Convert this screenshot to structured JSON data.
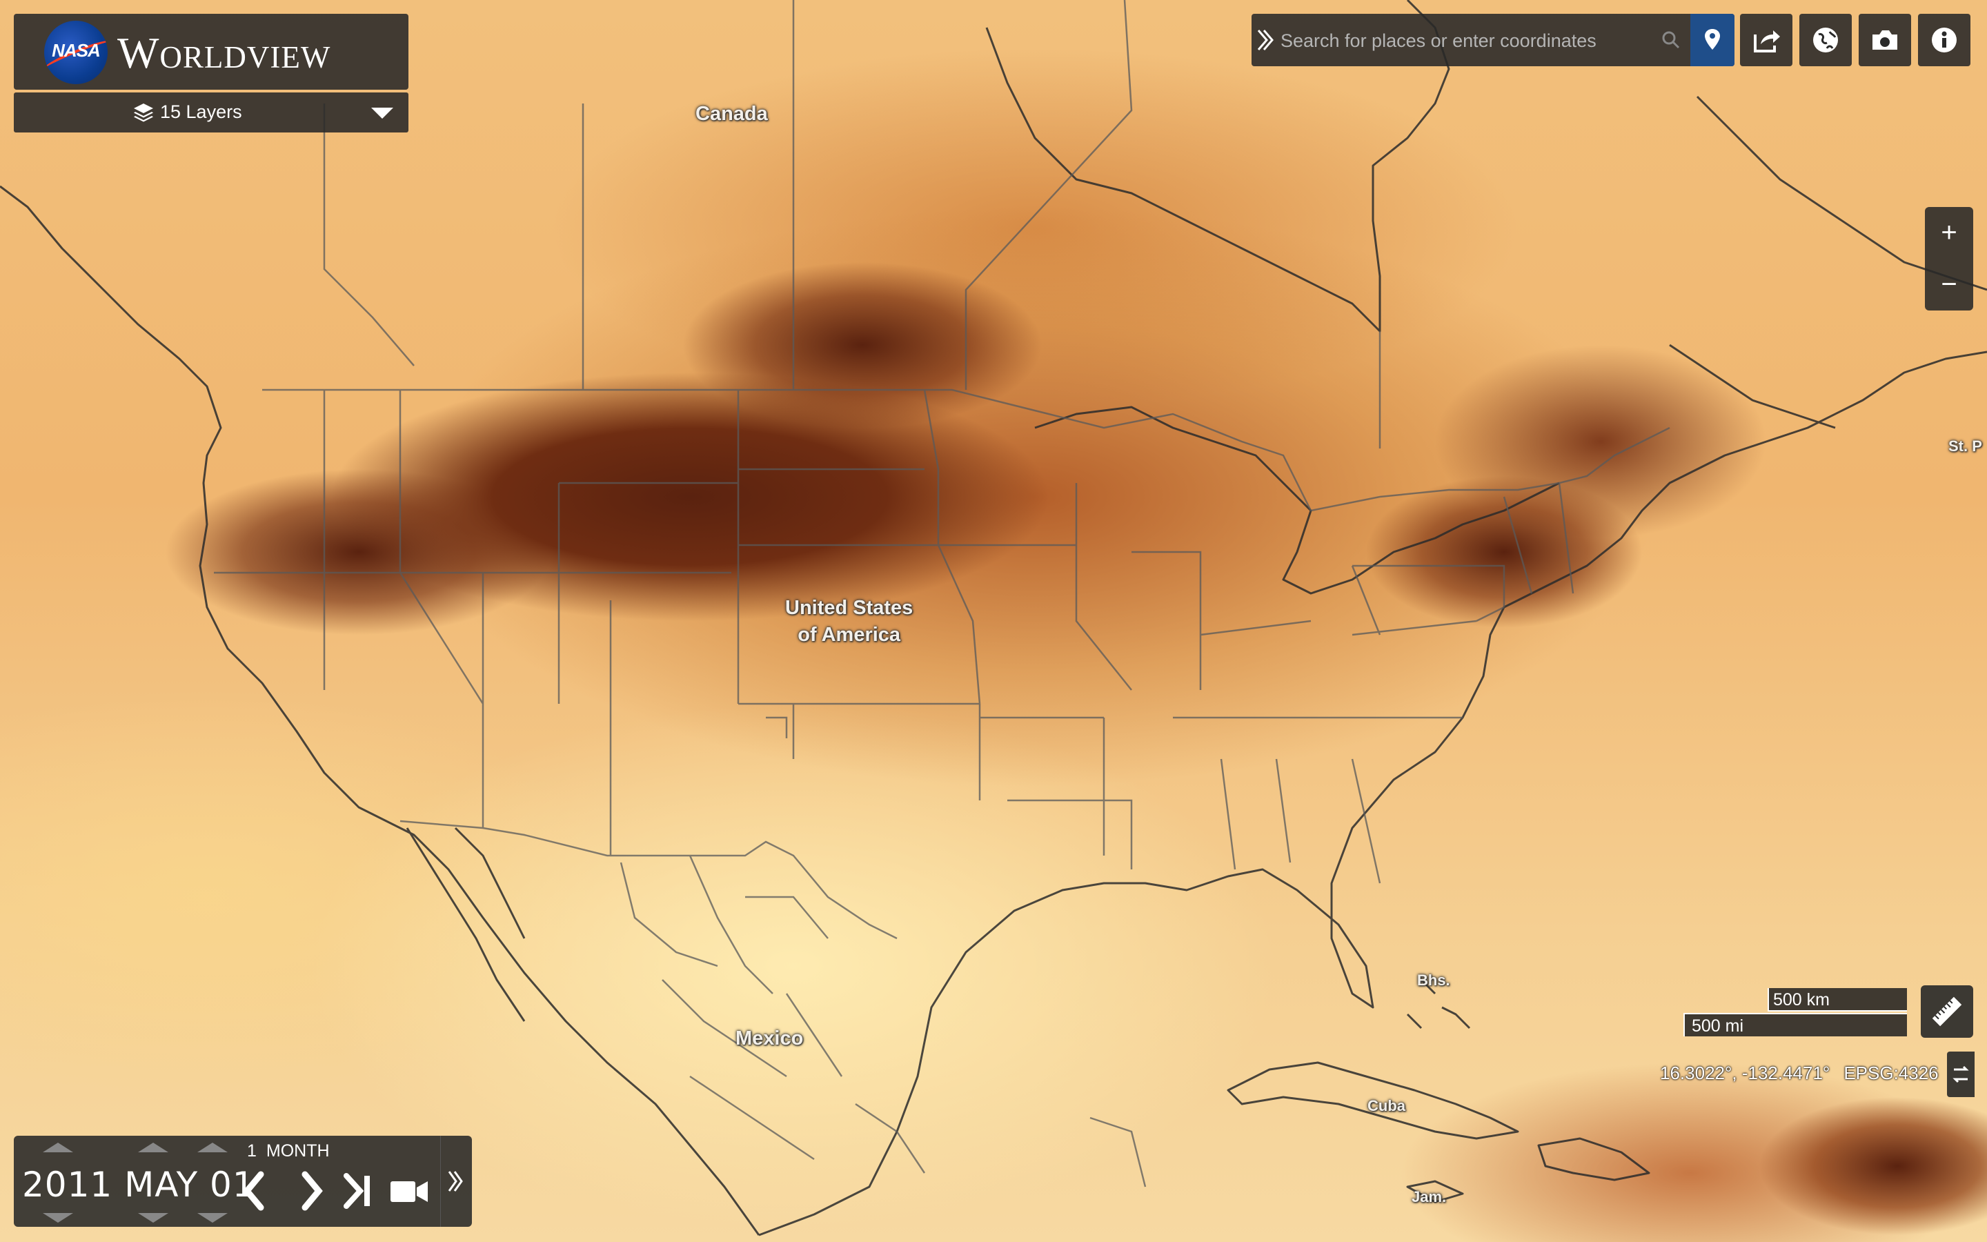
{
  "app": {
    "name": "Worldview",
    "logo_text": "NASA"
  },
  "layers": {
    "label": "15 Layers"
  },
  "search": {
    "placeholder": "Search for places or enter coordinates"
  },
  "toolbar": {
    "location_icon": "location-pin-icon",
    "share_icon": "share-icon",
    "projection_icon": "globe-icon",
    "snapshot_icon": "camera-icon",
    "info_icon": "info-icon"
  },
  "zoom": {
    "in_label": "+",
    "out_label": "−"
  },
  "map_labels": {
    "canada": "Canada",
    "usa_line1": "United States",
    "usa_line2": "of America",
    "mexico": "Mexico",
    "bahamas": "Bhs.",
    "cuba": "Cuba",
    "jamaica": "Jam.",
    "st_p": "St. P"
  },
  "scale": {
    "km": "500 km",
    "mi": "500 mi"
  },
  "coordinates": {
    "value": "16.3022°, -132.4471°",
    "projection": "EPSG:4326"
  },
  "timeline": {
    "date": "2011 MAY 01",
    "interval_count": "1",
    "interval_unit": "MONTH"
  },
  "colors": {
    "panel": "#282828",
    "accent_blue": "#1f4e8a",
    "heat_dark": "#5a220f",
    "heat_light": "#f7d9a2"
  }
}
